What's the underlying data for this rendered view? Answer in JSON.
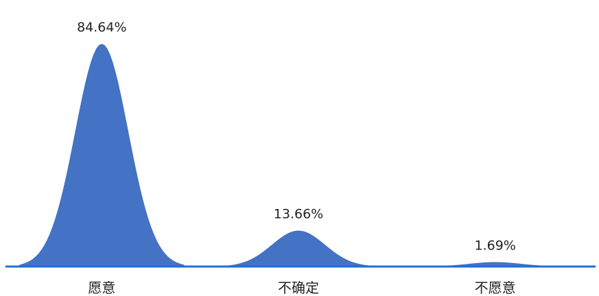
{
  "chart_data": {
    "type": "area",
    "categories": [
      "愿意",
      "不确定",
      "不愿意"
    ],
    "values": [
      84.64,
      13.66,
      1.69
    ],
    "data_labels": [
      "84.64%",
      "13.66%",
      "1.69%"
    ],
    "ylim": [
      0,
      100
    ],
    "grid": false,
    "legend": "none",
    "fill_color": "#4472C4",
    "axis_color": "#1F6FD1"
  }
}
